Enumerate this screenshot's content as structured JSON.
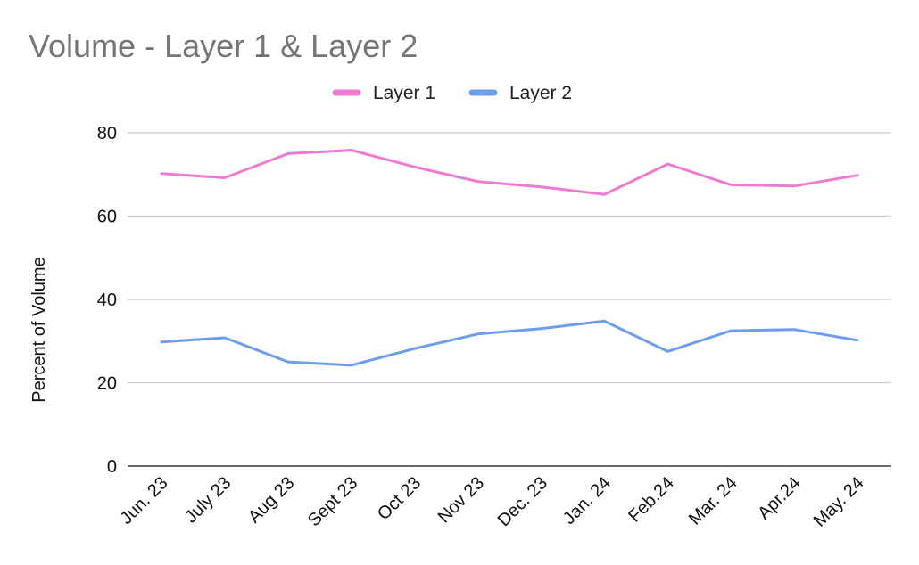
{
  "chart_data": {
    "type": "line",
    "title": "Volume - Layer 1 & Layer 2",
    "ylabel": "Percent of Volume",
    "xlabel": "",
    "categories": [
      "Jun. 23",
      "July 23",
      "Aug 23",
      "Sept 23",
      "Oct 23",
      "Nov 23",
      "Dec. 23",
      "Jan. 24",
      "Feb.24",
      "Mar. 24",
      "Apr.24",
      "May. 24"
    ],
    "ylim": [
      0,
      80
    ],
    "yticks": [
      0,
      20,
      40,
      60,
      80
    ],
    "grid": true,
    "legend_position": "top",
    "series": [
      {
        "name": "Layer 1",
        "color": "#f07ad0",
        "values": [
          70.2,
          69.2,
          75.0,
          75.8,
          71.8,
          68.3,
          67.0,
          65.2,
          72.5,
          67.5,
          67.2,
          69.8
        ]
      },
      {
        "name": "Layer 2",
        "color": "#6d9eeb",
        "values": [
          29.8,
          30.8,
          25.0,
          24.2,
          28.2,
          31.7,
          33.0,
          34.8,
          27.5,
          32.5,
          32.8,
          30.2
        ]
      }
    ]
  }
}
